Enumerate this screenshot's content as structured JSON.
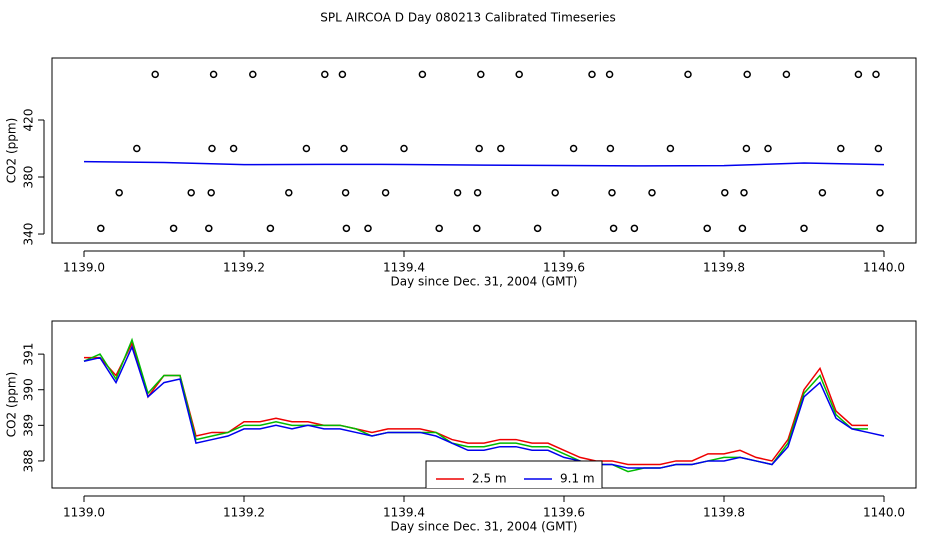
{
  "title": "SPL AIRCOA D  Day 080213  Calibrated Timeseries",
  "chart_data": [
    {
      "type": "scatter",
      "xlabel": "Day since Dec. 31, 2004 (GMT)",
      "ylabel": "CO2 (ppm)",
      "xlim": [
        1138.96,
        1140.04
      ],
      "ylim": [
        333.7,
        463.5
      ],
      "xticks": [
        {
          "value": 1139,
          "label": "1139.0"
        },
        1139.2,
        1139.4,
        1139.6,
        1139.8,
        {
          "value": 1140,
          "label": "1140.0"
        }
      ],
      "yticks": [
        340,
        380,
        420
      ],
      "series": [
        {
          "marker": "circle",
          "color": "#000000",
          "x": [
            1139.089,
            1139.162,
            1139.211,
            1139.301,
            1139.323,
            1139.423,
            1139.496,
            1139.544,
            1139.635,
            1139.657,
            1139.755,
            1139.829,
            1139.878,
            1139.968,
            1139.99,
            1139.066,
            1139.16,
            1139.187,
            1139.278,
            1139.325,
            1139.4,
            1139.494,
            1139.521,
            1139.612,
            1139.658,
            1139.733,
            1139.828,
            1139.855,
            1139.946,
            1139.993,
            1139.044,
            1139.134,
            1139.159,
            1139.256,
            1139.327,
            1139.377,
            1139.467,
            1139.492,
            1139.589,
            1139.66,
            1139.71,
            1139.801,
            1139.825,
            1139.923,
            1139.995,
            1139.021,
            1139.112,
            1139.156,
            1139.233,
            1139.328,
            1139.355,
            1139.444,
            1139.491,
            1139.567,
            1139.662,
            1139.688,
            1139.779,
            1139.823,
            1139.9,
            1139.995
          ],
          "values": [
            452,
            452,
            452,
            452,
            452,
            452,
            452,
            452,
            452,
            452,
            452,
            452,
            452,
            452,
            452,
            400,
            400,
            400,
            400,
            400,
            400,
            400,
            400,
            400,
            400,
            400,
            400,
            400,
            400,
            400,
            369,
            369,
            369,
            369,
            369,
            369,
            369,
            369,
            369,
            369,
            369,
            369,
            369,
            369,
            369,
            344,
            344,
            344,
            344,
            344,
            344,
            344,
            344,
            344,
            344,
            344,
            344,
            344,
            344,
            344
          ]
        },
        {
          "line": true,
          "color": "#0000ee",
          "x": [
            1139.0,
            1139.1,
            1139.2,
            1139.3,
            1139.4,
            1139.5,
            1139.6,
            1139.7,
            1139.8,
            1139.9,
            1140.0
          ],
          "values": [
            390.8,
            390.2,
            388.7,
            388.9,
            388.8,
            388.3,
            388.1,
            387.8,
            388.0,
            389.8,
            388.7
          ]
        }
      ]
    },
    {
      "type": "line",
      "xlabel": "Day since Dec. 31, 2004 (GMT)",
      "ylabel": "CO2 (ppm)",
      "xlim": [
        1138.96,
        1140.04
      ],
      "ylim": [
        387.24,
        391.93
      ],
      "xticks": [
        {
          "value": 1139,
          "label": "1139.0"
        },
        1139.2,
        1139.4,
        1139.6,
        1139.8,
        {
          "value": 1140,
          "label": "1140.0"
        }
      ],
      "yticks": [
        388,
        389,
        390,
        391
      ],
      "legend": "bottom",
      "x": [
        1139.0,
        1139.02,
        1139.04,
        1139.06,
        1139.08,
        1139.1,
        1139.12,
        1139.14,
        1139.16,
        1139.18,
        1139.2,
        1139.22,
        1139.24,
        1139.26,
        1139.28,
        1139.3,
        1139.32,
        1139.34,
        1139.36,
        1139.38,
        1139.4,
        1139.42,
        1139.44,
        1139.46,
        1139.48,
        1139.5,
        1139.52,
        1139.54,
        1139.56,
        1139.58,
        1139.6,
        1139.62,
        1139.64,
        1139.66,
        1139.68,
        1139.7,
        1139.72,
        1139.74,
        1139.76,
        1139.78,
        1139.8,
        1139.82,
        1139.84,
        1139.86,
        1139.88,
        1139.9,
        1139.92,
        1139.94,
        1139.96,
        1139.98,
        1140.0
      ],
      "series": [
        {
          "name": "2.5 m",
          "color": "#ee0000",
          "values": [
            390.9,
            390.9,
            390.4,
            391.3,
            389.8,
            390.4,
            390.4,
            388.7,
            388.8,
            388.8,
            389.1,
            389.1,
            389.2,
            389.1,
            389.1,
            389.0,
            389.0,
            388.9,
            388.8,
            388.9,
            388.9,
            388.9,
            388.8,
            388.6,
            388.5,
            388.5,
            388.6,
            388.6,
            388.5,
            388.5,
            388.3,
            388.1,
            388.0,
            388.0,
            387.9,
            387.9,
            387.9,
            388.0,
            388.0,
            388.2,
            388.2,
            388.3,
            388.1,
            388.0,
            388.6,
            390.0,
            390.6,
            389.4,
            389.0,
            389.0,
            null
          ]
        },
        {
          "color": "#00bb00",
          "values": [
            390.8,
            391.0,
            390.3,
            391.4,
            389.9,
            390.4,
            390.4,
            388.6,
            388.7,
            388.8,
            389.0,
            389.0,
            389.1,
            389.0,
            389.0,
            389.0,
            389.0,
            388.9,
            388.7,
            388.8,
            388.8,
            388.8,
            388.8,
            388.5,
            388.4,
            388.4,
            388.5,
            388.5,
            388.4,
            388.4,
            388.2,
            388.0,
            387.9,
            387.9,
            387.7,
            387.8,
            387.8,
            387.9,
            387.9,
            388.0,
            388.1,
            388.1,
            388.0,
            387.9,
            388.5,
            389.9,
            390.4,
            389.3,
            388.9,
            388.9,
            null
          ]
        },
        {
          "name": "9.1 m",
          "color": "#0000ee",
          "values": [
            390.8,
            390.9,
            390.2,
            391.2,
            389.8,
            390.2,
            390.3,
            388.5,
            388.6,
            388.7,
            388.9,
            388.9,
            389.0,
            388.9,
            389.0,
            388.9,
            388.9,
            388.8,
            388.7,
            388.8,
            388.8,
            388.8,
            388.7,
            388.5,
            388.3,
            388.3,
            388.4,
            388.4,
            388.3,
            388.3,
            388.1,
            388.0,
            387.9,
            387.9,
            387.8,
            387.8,
            387.8,
            387.9,
            387.9,
            388.0,
            388.0,
            388.1,
            388.0,
            387.9,
            388.4,
            389.8,
            390.2,
            389.2,
            388.9,
            388.8,
            388.7
          ]
        }
      ]
    }
  ]
}
